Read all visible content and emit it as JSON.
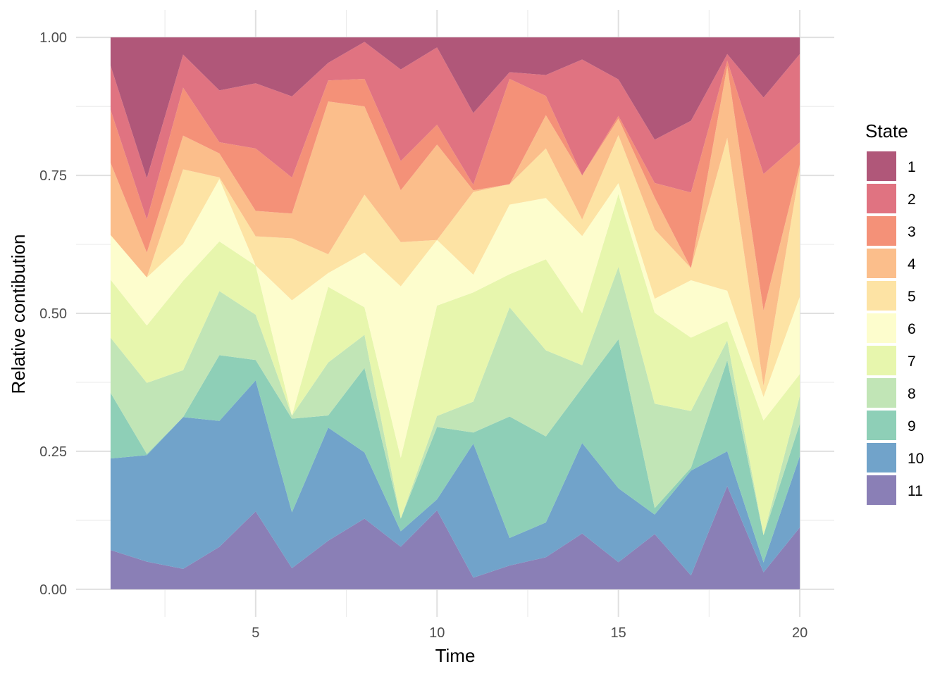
{
  "chart_data": {
    "type": "area",
    "stacking": "fill",
    "xlabel": "Time",
    "ylabel": "Relative contibution",
    "xlim": [
      0.05,
      20.95
    ],
    "ylim": [
      -0.05,
      1.05
    ],
    "x_ticks": [
      5,
      10,
      15,
      20
    ],
    "x_tick_labels": [
      "5",
      "10",
      "15",
      "20"
    ],
    "y_ticks": [
      0,
      0.25,
      0.5,
      0.75,
      1
    ],
    "y_tick_labels": [
      "0.00",
      "0.25",
      "0.50",
      "0.75",
      "1.00"
    ],
    "grid": true,
    "legend": {
      "title": "State",
      "position": "right"
    },
    "x": [
      1,
      2,
      3,
      4,
      5,
      6,
      7,
      8,
      9,
      10,
      11,
      12,
      13,
      14,
      15,
      16,
      17,
      18,
      19,
      20
    ],
    "series": [
      {
        "name": "11",
        "color": "#8a7fb6",
        "values": [
          0.071,
          0.05,
          0.037,
          0.076,
          0.141,
          0.034,
          0.088,
          0.128,
          0.077,
          0.143,
          0.021,
          0.043,
          0.058,
          0.101,
          0.049,
          0.102,
          0.025,
          0.187,
          0.031,
          0.112
        ]
      },
      {
        "name": "10",
        "color": "#71a3ca",
        "values": [
          0.166,
          0.193,
          0.275,
          0.226,
          0.237,
          0.09,
          0.205,
          0.12,
          0.028,
          0.02,
          0.243,
          0.05,
          0.063,
          0.164,
          0.134,
          0.036,
          0.19,
          0.063,
          0.018,
          0.129
        ]
      },
      {
        "name": "9",
        "color": "#8ecfb7",
        "values": [
          0.119,
          0.002,
          0.0,
          0.118,
          0.037,
          0.151,
          0.022,
          0.153,
          0.023,
          0.131,
          0.02,
          0.22,
          0.156,
          0.1,
          0.27,
          0.012,
          0.005,
          0.165,
          0.05,
          0.059
        ]
      },
      {
        "name": "8",
        "color": "#c1e5b6",
        "values": [
          0.1,
          0.129,
          0.085,
          0.115,
          0.082,
          0.005,
          0.096,
          0.06,
          0.0,
          0.02,
          0.056,
          0.198,
          0.156,
          0.041,
          0.131,
          0.193,
          0.103,
          0.036,
          0.0,
          0.05
        ]
      },
      {
        "name": "7",
        "color": "#e7f6ad",
        "values": [
          0.105,
          0.104,
          0.162,
          0.089,
          0.089,
          0.0,
          0.137,
          0.05,
          0.11,
          0.2,
          0.198,
          0.06,
          0.165,
          0.094,
          0.132,
          0.168,
          0.133,
          0.035,
          0.21,
          0.04
        ]
      },
      {
        "name": "6",
        "color": "#fdfdcd",
        "values": [
          0.081,
          0.087,
          0.067,
          0.112,
          0.0,
          0.186,
          0.025,
          0.099,
          0.311,
          0.119,
          0.032,
          0.126,
          0.111,
          0.14,
          0.02,
          0.026,
          0.104,
          0.055,
          0.043,
          0.14
        ]
      },
      {
        "name": "5",
        "color": "#fde3a4",
        "values": [
          0.0,
          0.0,
          0.135,
          0.003,
          0.053,
          0.1,
          0.034,
          0.105,
          0.08,
          0.0,
          0.15,
          0.037,
          0.09,
          0.03,
          0.087,
          0.128,
          0.022,
          0.277,
          0.02,
          0.23
        ]
      },
      {
        "name": "4",
        "color": "#fbbe8b",
        "values": [
          0.131,
          0.045,
          0.061,
          0.043,
          0.046,
          0.04,
          0.277,
          0.16,
          0.094,
          0.173,
          0.003,
          0.0,
          0.06,
          0.08,
          0.03,
          0.059,
          0.0,
          0.13,
          0.138,
          0.01
        ]
      },
      {
        "name": "3",
        "color": "#f49178",
        "values": [
          0.096,
          0.06,
          0.087,
          0.02,
          0.113,
          0.058,
          0.038,
          0.05,
          0.053,
          0.036,
          0.01,
          0.191,
          0.035,
          0.0,
          0.005,
          0.027,
          0.137,
          0.01,
          0.25,
          0.04
        ]
      },
      {
        "name": "2",
        "color": "#e07381",
        "values": [
          0.08,
          0.075,
          0.06,
          0.093,
          0.118,
          0.131,
          0.032,
          0.067,
          0.166,
          0.14,
          0.13,
          0.012,
          0.038,
          0.21,
          0.066,
          0.08,
          0.13,
          0.012,
          0.14,
          0.16
        ]
      },
      {
        "name": "1",
        "color": "#b05779",
        "values": [
          0.051,
          0.255,
          0.031,
          0.095,
          0.083,
          0.095,
          0.046,
          0.008,
          0.058,
          0.018,
          0.137,
          0.063,
          0.068,
          0.04,
          0.076,
          0.189,
          0.151,
          0.03,
          0.11,
          0.03
        ]
      }
    ]
  }
}
